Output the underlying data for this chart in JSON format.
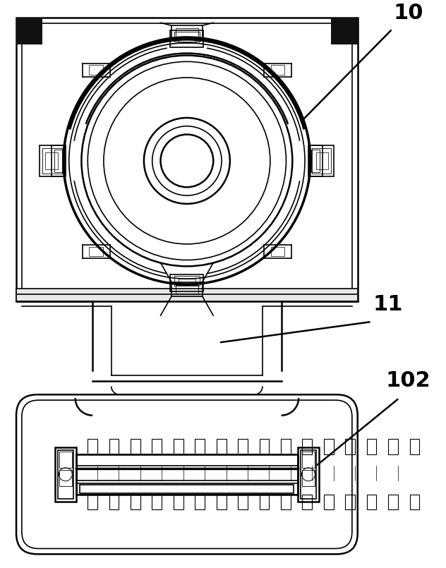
{
  "bg_color": "#ffffff",
  "line_color": "#000000",
  "fig_width": 6.32,
  "fig_height": 8.05,
  "label_10": "10",
  "label_11": "11",
  "label_102": "102"
}
